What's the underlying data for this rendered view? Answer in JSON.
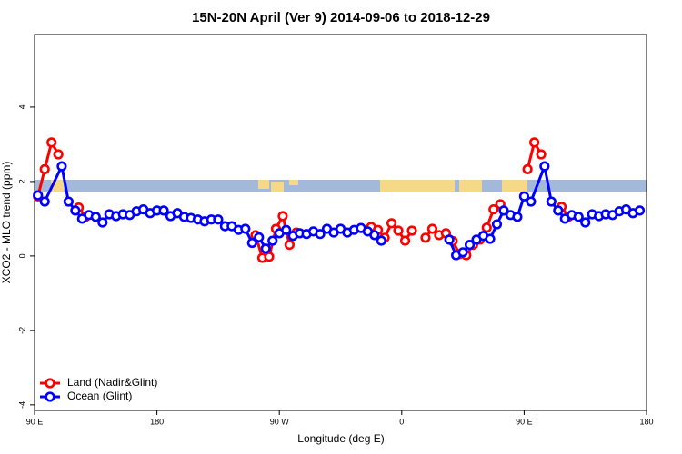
{
  "chart_data": {
    "type": "line",
    "title": "15N-20N April (Ver 9)   2014-09-06 to 2018-12-29",
    "xlabel": "Longitude (deg E)",
    "ylabel": "XCO2 - MLO trend (ppm)",
    "xlim": [
      90,
      540
    ],
    "ylim": [
      -4.15,
      5.95
    ],
    "xticks": [
      {
        "value": 90,
        "label": "90 E"
      },
      180,
      {
        "value": 270,
        "label": "90 W"
      },
      {
        "value": 360,
        "label": "0"
      },
      {
        "value": 450,
        "label": "90 E"
      },
      {
        "value": 540,
        "label": "180"
      }
    ],
    "yticks": [
      -4,
      -2,
      0,
      2,
      4
    ],
    "legend": "bottom-left",
    "series": [
      {
        "name": "Land (Nadir&Glint)",
        "color": "#ff0000",
        "x": [
          92.5,
          97.5,
          102.5,
          107.5,
          null,
          122.5,
          127.5,
          null,
          252.5,
          257.5,
          262.5,
          267.5,
          272.5,
          277.5,
          282.5,
          null,
          337.5,
          342.5,
          347.5,
          352.5,
          357.5,
          362.5,
          367.5,
          null,
          377.5,
          382.5,
          387.5,
          392.5,
          397.5,
          402.5,
          407.5,
          412.5,
          417.5,
          422.5,
          427.5,
          432.5,
          null,
          452.5,
          457.5,
          462.5,
          null,
          477.5,
          482.5
        ],
        "values": [
          1.6,
          2.33,
          3.05,
          2.73,
          null,
          1.3,
          1.05,
          null,
          0.56,
          -0.05,
          -0.02,
          0.73,
          1.07,
          0.3,
          0.63,
          null,
          0.78,
          0.7,
          0.49,
          0.88,
          0.68,
          0.41,
          0.68,
          null,
          0.49,
          0.73,
          0.56,
          0.61,
          0.4,
          0.05,
          0.02,
          0.3,
          0.44,
          0.76,
          1.25,
          1.39,
          null,
          2.33,
          3.05,
          2.73,
          null,
          1.32,
          1.05
        ]
      },
      {
        "name": "Ocean (Glint)",
        "color": "#0000ff",
        "x": [
          92.5,
          97.5,
          110,
          115,
          120,
          125,
          130,
          135,
          140,
          145,
          150,
          155,
          160,
          165,
          170,
          175,
          180,
          185,
          190,
          195,
          200,
          205,
          210,
          215,
          220,
          225,
          230,
          235,
          240,
          245,
          250,
          255,
          260,
          265,
          270,
          275,
          280,
          285,
          290,
          295,
          300,
          305,
          310,
          315,
          320,
          325,
          330,
          335,
          340,
          345,
          null,
          395,
          400,
          405,
          410,
          415,
          420,
          425,
          430,
          435,
          440,
          445,
          450,
          455,
          465,
          470,
          475,
          480,
          485,
          490,
          495,
          500,
          505,
          510,
          515,
          520,
          525,
          530,
          535
        ],
        "values": [
          1.63,
          1.46,
          2.41,
          1.46,
          1.22,
          1.0,
          1.1,
          1.05,
          0.9,
          1.12,
          1.07,
          1.12,
          1.1,
          1.2,
          1.25,
          1.15,
          1.22,
          1.22,
          1.07,
          1.15,
          1.05,
          1.02,
          0.98,
          0.93,
          0.98,
          0.98,
          0.8,
          0.8,
          0.7,
          0.73,
          0.35,
          0.5,
          0.2,
          0.41,
          0.61,
          0.7,
          0.54,
          0.61,
          0.59,
          0.66,
          0.59,
          0.73,
          0.63,
          0.73,
          0.63,
          0.7,
          0.75,
          0.66,
          0.56,
          0.41,
          null,
          0.44,
          0.02,
          0.1,
          0.3,
          0.44,
          0.54,
          0.46,
          0.85,
          1.22,
          1.1,
          1.05,
          1.6,
          1.46,
          2.41,
          1.46,
          1.22,
          1.0,
          1.1,
          1.05,
          0.9,
          1.12,
          1.07,
          1.12,
          1.1,
          1.2,
          1.25,
          1.15,
          1.22
        ]
      }
    ]
  }
}
